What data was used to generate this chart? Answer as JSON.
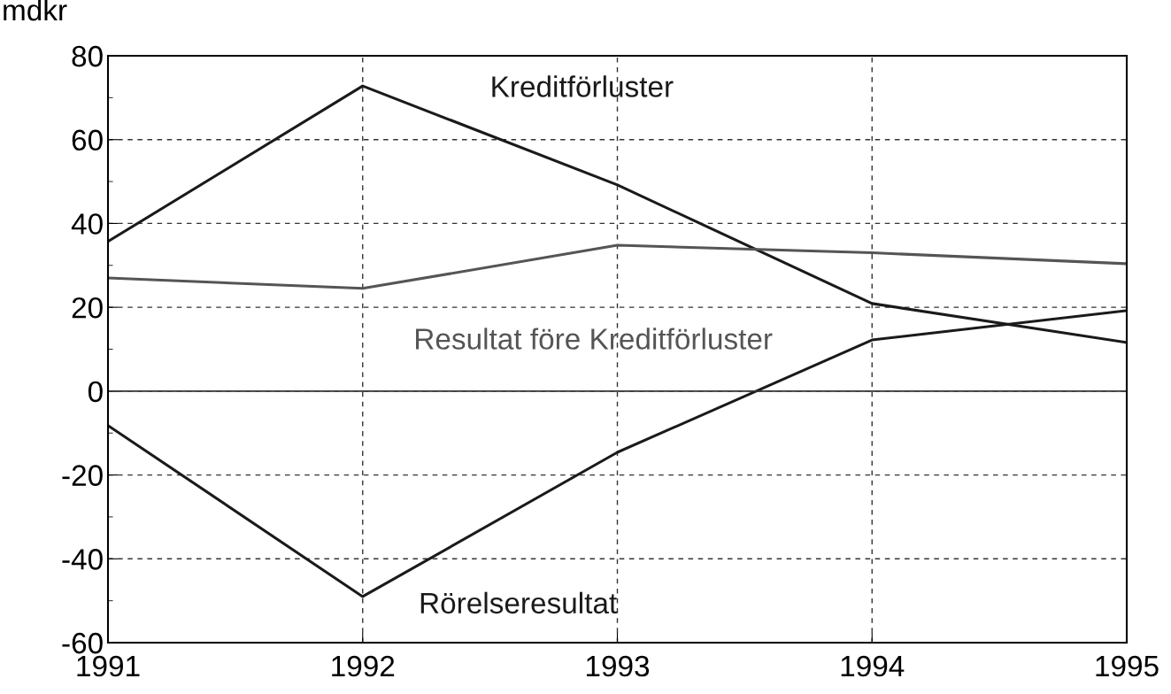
{
  "chart_data": {
    "type": "line",
    "ylabel": "mdkr",
    "x": [
      1991,
      1992,
      1993,
      1994,
      1995
    ],
    "series": [
      {
        "name": "Kreditförluster",
        "color": "#1a1a1a",
        "values": [
          35.7,
          72.8,
          49.2,
          20.9,
          11.6
        ]
      },
      {
        "name": "Resultat före Kreditförluster",
        "color": "#555555",
        "values": [
          27,
          24.5,
          34.8,
          33,
          30.4
        ]
      },
      {
        "name": "Rörelseresultat",
        "color": "#1a1a1a",
        "values": [
          -8.2,
          -49,
          -14.6,
          12.2,
          19.2
        ]
      }
    ],
    "xlim": [
      1991,
      1995
    ],
    "xticks": [
      1991,
      1992,
      1993,
      1994,
      1995
    ],
    "ylim": [
      -60,
      80
    ],
    "yticks": [
      -60,
      -40,
      -20,
      0,
      20,
      40,
      60,
      80
    ],
    "ref_lines": [
      {
        "axis": "y",
        "value": 0,
        "color": "#333333",
        "line_style": "solid"
      }
    ],
    "grid": true,
    "marker": "none",
    "line_style": "solid",
    "legend": false
  }
}
